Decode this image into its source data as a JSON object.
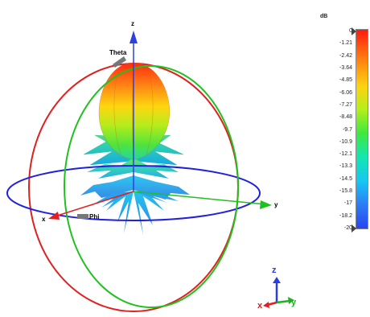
{
  "axes": {
    "z": "z",
    "y": "y",
    "x": "x",
    "theta": "Theta",
    "phi": "Phi"
  },
  "legend": {
    "title": "dB",
    "ticks": [
      "0",
      "-1.21",
      "-2.42",
      "-3.64",
      "-4.85",
      "-6.06",
      "-7.27",
      "-8.48",
      "-9.7",
      "-10.9",
      "-12.1",
      "-13.3",
      "-14.5",
      "-15.8",
      "-17",
      "-18.2",
      "-20"
    ],
    "colors": [
      "#ff1a10",
      "#ff7a10",
      "#ffd10f",
      "#3fe83e",
      "#16c8f2",
      "#2a45ee"
    ]
  },
  "mini_axes": {
    "x": "x",
    "y": "y",
    "z": "z"
  }
}
